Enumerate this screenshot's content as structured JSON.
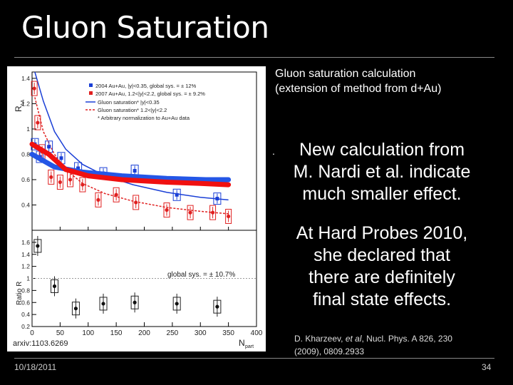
{
  "slide": {
    "title": "Gluon Saturation",
    "caption_top_line1": "Gluon saturation calculation",
    "caption_top_line2": "(extension of method from d+Au)",
    "bullet_dot": ".",
    "new_calc_line1": "New calculation from",
    "new_calc_line2": "M. Nardi et al. indicate",
    "new_calc_line3": "much smaller effect.",
    "hp_line1": "At Hard Probes 2010,",
    "hp_line2": "she declared that",
    "hp_line3": "there are definitely",
    "hp_line4": "final state effects.",
    "ref_prefix": "D. Kharzeev, ",
    "ref_italic": "et al",
    "ref_suffix": ", Nucl. Phys. A 826, 230",
    "ref_line2": "(2009), 0809.2933",
    "date": "10/18/2011",
    "page_number": "34"
  },
  "chart_data": {
    "type": "scatter",
    "x_label": "N",
    "x_label_sub": "part",
    "x_ticks": [
      "0",
      "50",
      "100",
      "150",
      "200",
      "250",
      "300",
      "350",
      "400"
    ],
    "xlim": [
      0,
      400
    ],
    "top_panel": {
      "y_label": "R",
      "y_label_sub": "AA",
      "ylim": [
        0.2,
        1.45
      ],
      "y_ticks": [
        "0.4",
        "0.6",
        "0.8",
        "1",
        "1.2",
        "1.4"
      ],
      "legend": [
        "2004 Au+Au, |y|<0.35,   global sys. = ± 12%",
        "2007 Au+Au, 1.2<|y|<2.2,   global sys. = ± 9.2%",
        "Gluon saturation* |y|<0.35",
        "Gluon saturation* 1.2<|y|<2.2",
        "* Arbitrary normalization to Au+Au data"
      ],
      "mid_rapidity": [
        {
          "x": 5,
          "y": 0.88
        },
        {
          "x": 14,
          "y": 0.78
        },
        {
          "x": 30,
          "y": 0.86
        },
        {
          "x": 52,
          "y": 0.77
        },
        {
          "x": 82,
          "y": 0.69
        },
        {
          "x": 127,
          "y": 0.65
        },
        {
          "x": 183,
          "y": 0.67
        },
        {
          "x": 258,
          "y": 0.48
        },
        {
          "x": 330,
          "y": 0.45
        }
      ],
      "forward_rapidity": [
        {
          "x": 4,
          "y": 1.32
        },
        {
          "x": 10,
          "y": 1.05
        },
        {
          "x": 18,
          "y": 0.82
        },
        {
          "x": 34,
          "y": 0.62
        },
        {
          "x": 50,
          "y": 0.58
        },
        {
          "x": 68,
          "y": 0.6
        },
        {
          "x": 90,
          "y": 0.56
        },
        {
          "x": 118,
          "y": 0.44
        },
        {
          "x": 150,
          "y": 0.48
        },
        {
          "x": 185,
          "y": 0.42
        },
        {
          "x": 240,
          "y": 0.36
        },
        {
          "x": 282,
          "y": 0.34
        },
        {
          "x": 322,
          "y": 0.34
        },
        {
          "x": 350,
          "y": 0.31
        }
      ],
      "theory_mid": [
        {
          "x": 5,
          "y": 1.45
        },
        {
          "x": 20,
          "y": 1.22
        },
        {
          "x": 40,
          "y": 0.98
        },
        {
          "x": 60,
          "y": 0.84
        },
        {
          "x": 90,
          "y": 0.72
        },
        {
          "x": 130,
          "y": 0.63
        },
        {
          "x": 180,
          "y": 0.56
        },
        {
          "x": 240,
          "y": 0.5
        },
        {
          "x": 300,
          "y": 0.46
        },
        {
          "x": 350,
          "y": 0.44
        }
      ],
      "theory_forward": [
        {
          "x": 5,
          "y": 1.25
        },
        {
          "x": 20,
          "y": 0.98
        },
        {
          "x": 40,
          "y": 0.8
        },
        {
          "x": 60,
          "y": 0.68
        },
        {
          "x": 90,
          "y": 0.57
        },
        {
          "x": 130,
          "y": 0.49
        },
        {
          "x": 180,
          "y": 0.43
        },
        {
          "x": 240,
          "y": 0.38
        },
        {
          "x": 300,
          "y": 0.35
        },
        {
          "x": 350,
          "y": 0.33
        }
      ],
      "nardi_blue": [
        {
          "x": 0,
          "y": 0.8
        },
        {
          "x": 40,
          "y": 0.7
        },
        {
          "x": 90,
          "y": 0.66
        },
        {
          "x": 160,
          "y": 0.63
        },
        {
          "x": 240,
          "y": 0.61
        },
        {
          "x": 310,
          "y": 0.6
        },
        {
          "x": 350,
          "y": 0.6
        }
      ],
      "nardi_red": [
        {
          "x": 0,
          "y": 0.88
        },
        {
          "x": 30,
          "y": 0.8
        },
        {
          "x": 60,
          "y": 0.68
        },
        {
          "x": 100,
          "y": 0.63
        },
        {
          "x": 160,
          "y": 0.6
        },
        {
          "x": 240,
          "y": 0.58
        },
        {
          "x": 300,
          "y": 0.57
        },
        {
          "x": 350,
          "y": 0.56
        }
      ]
    },
    "bottom_panel": {
      "y_label": "Ratio R",
      "ylim": [
        0.2,
        1.8
      ],
      "y_ticks": [
        "0.2",
        "0.4",
        "0.6",
        "0.8",
        "1",
        "1.2",
        "1.4",
        "1.6"
      ],
      "global_sys": "global sys. = ± 10.7%",
      "ratio": [
        {
          "x": 10,
          "y": 1.54
        },
        {
          "x": 40,
          "y": 0.87
        },
        {
          "x": 78,
          "y": 0.5
        },
        {
          "x": 127,
          "y": 0.58
        },
        {
          "x": 183,
          "y": 0.6
        },
        {
          "x": 258,
          "y": 0.58
        },
        {
          "x": 330,
          "y": 0.53
        }
      ]
    },
    "annotation": "arxiv:1103.6269"
  }
}
